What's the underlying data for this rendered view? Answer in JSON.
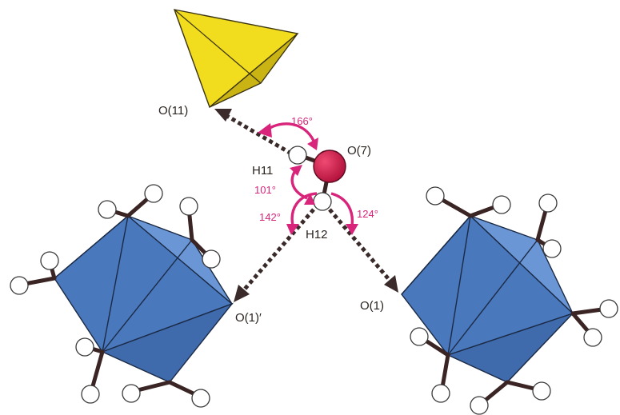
{
  "labels": {
    "o11": "O(11)",
    "o7": "O(7)",
    "h11": "H11",
    "h12": "H12",
    "o1": "O(1)",
    "o1prime": "O(1)′"
  },
  "angles": {
    "a166": "166°",
    "a101": "101°",
    "a142": "142°",
    "a124": "124°"
  },
  "colors": {
    "tetrahedron": "#e8d21a",
    "octahedron": "#4f7fc4",
    "oxygen": "#d81a4a",
    "angle_arc": "#d8247a"
  }
}
